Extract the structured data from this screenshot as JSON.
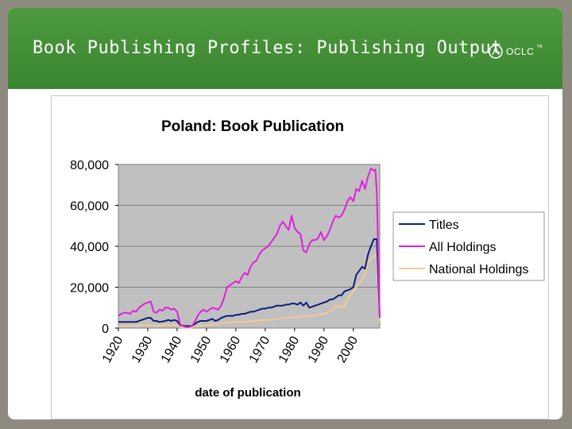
{
  "slide": {
    "title": "Book Publishing Profiles: Publishing Output",
    "logo_text": "OCLC",
    "logo_tm": "TM"
  },
  "colors": {
    "banner": "#3f8b34",
    "plot_bg": "#c0c0c0",
    "titles": "#0b1f7a",
    "all_holdings": "#e020e0",
    "national_holdings": "#f5c896"
  },
  "chart_data": {
    "type": "line",
    "title": "Poland: Book Publication",
    "xlabel": "date of publication",
    "ylabel": "",
    "xlim": [
      1920,
      2009
    ],
    "ylim": [
      0,
      80000
    ],
    "x_ticks": [
      "1920",
      "1930",
      "1940",
      "1950",
      "1960",
      "1970",
      "1980",
      "1990",
      "2000"
    ],
    "y_ticks": [
      "0",
      "20,000",
      "40,000",
      "60,000",
      "80,000"
    ],
    "grid": "horizontal",
    "legend_position": "right",
    "series": [
      {
        "name": "Titles",
        "color": "#0b1f7a",
        "x": [
          1920,
          1922,
          1924,
          1926,
          1928,
          1929,
          1930,
          1931,
          1932,
          1933,
          1934,
          1936,
          1937,
          1938,
          1939,
          1940,
          1941,
          1942,
          1943,
          1944,
          1945,
          1946,
          1947,
          1948,
          1949,
          1950,
          1951,
          1952,
          1953,
          1954,
          1955,
          1956,
          1957,
          1958,
          1959,
          1960,
          1961,
          1962,
          1963,
          1964,
          1965,
          1966,
          1967,
          1968,
          1969,
          1970,
          1971,
          1972,
          1973,
          1974,
          1975,
          1976,
          1977,
          1978,
          1979,
          1980,
          1981,
          1982,
          1983,
          1984,
          1985,
          1986,
          1987,
          1988,
          1989,
          1990,
          1991,
          1992,
          1993,
          1994,
          1995,
          1996,
          1997,
          1998,
          1999,
          2000,
          2001,
          2002,
          2003,
          2004,
          2005,
          2006,
          2007,
          2007.5,
          2008,
          2009
        ],
        "values": [
          3000,
          3000,
          3000,
          3000,
          4000,
          4500,
          5000,
          5000,
          3500,
          3500,
          3000,
          3500,
          4000,
          3500,
          4000,
          3500,
          1500,
          1200,
          1000,
          1000,
          1000,
          2000,
          3000,
          3500,
          3500,
          3500,
          4000,
          4500,
          3500,
          4000,
          5000,
          5500,
          6000,
          6000,
          6000,
          6500,
          6500,
          7000,
          7000,
          7500,
          8000,
          8000,
          8500,
          9000,
          9500,
          9500,
          10000,
          10000,
          10500,
          11000,
          11000,
          11000,
          11500,
          11500,
          12000,
          12000,
          11500,
          12500,
          11000,
          12500,
          10000,
          10500,
          11000,
          11500,
          12000,
          12500,
          13000,
          14000,
          14000,
          15000,
          16000,
          16000,
          18000,
          18500,
          19000,
          20000,
          26000,
          28000,
          30000,
          29000,
          36000,
          40000,
          43500,
          43500,
          43500,
          5000
        ]
      },
      {
        "name": "All Holdings",
        "color": "#e020e0",
        "x": [
          1920,
          1921,
          1922,
          1923,
          1924,
          1925,
          1926,
          1927,
          1928,
          1929,
          1930,
          1931,
          1932,
          1933,
          1934,
          1935,
          1936,
          1937,
          1938,
          1939,
          1940,
          1941,
          1942,
          1943,
          1944,
          1945,
          1946,
          1947,
          1948,
          1949,
          1950,
          1951,
          1952,
          1953,
          1954,
          1955,
          1956,
          1957,
          1958,
          1959,
          1960,
          1961,
          1962,
          1963,
          1964,
          1965,
          1966,
          1967,
          1968,
          1969,
          1970,
          1971,
          1972,
          1973,
          1974,
          1975,
          1976,
          1977,
          1978,
          1979,
          1980,
          1981,
          1982,
          1983,
          1984,
          1985,
          1986,
          1987,
          1988,
          1989,
          1990,
          1991,
          1992,
          1993,
          1994,
          1995,
          1996,
          1997,
          1998,
          1999,
          2000,
          2001,
          2002,
          2003,
          2004,
          2005,
          2006,
          2007,
          2007.5,
          2008,
          2009
        ],
        "values": [
          6000,
          7000,
          7500,
          7500,
          7000,
          8500,
          8000,
          10000,
          11000,
          12000,
          12500,
          13000,
          8000,
          7500,
          9000,
          8500,
          10000,
          10000,
          9000,
          9500,
          8000,
          2000,
          1000,
          500,
          500,
          1000,
          3000,
          6000,
          8000,
          9000,
          8000,
          9000,
          10000,
          9500,
          9000,
          11000,
          15000,
          20000,
          21000,
          22000,
          23000,
          22000,
          25000,
          27000,
          26000,
          30000,
          32000,
          33000,
          36000,
          38000,
          39000,
          40000,
          42000,
          44000,
          46000,
          50000,
          52000,
          50000,
          48000,
          55000,
          49000,
          47000,
          46000,
          38000,
          37000,
          41000,
          43000,
          43000,
          44000,
          47000,
          43000,
          45000,
          48000,
          52000,
          55000,
          54000,
          55000,
          58000,
          62000,
          64000,
          62000,
          68000,
          67000,
          72000,
          68000,
          74000,
          78000,
          77000,
          77500,
          66000,
          5000
        ]
      },
      {
        "name": "National Holdings",
        "color": "#f5c896",
        "x": [
          1920,
          1922,
          1924,
          1926,
          1928,
          1930,
          1932,
          1934,
          1936,
          1938,
          1940,
          1941,
          1942,
          1943,
          1944,
          1945,
          1946,
          1948,
          1950,
          1952,
          1954,
          1956,
          1958,
          1960,
          1962,
          1964,
          1966,
          1968,
          1970,
          1972,
          1974,
          1976,
          1978,
          1980,
          1982,
          1984,
          1986,
          1988,
          1990,
          1992,
          1993,
          1994,
          1995,
          1996,
          1997,
          1998,
          1999,
          2000,
          2001,
          2002,
          2003,
          2004,
          2005,
          2006,
          2007,
          2008,
          2009
        ],
        "values": [
          1000,
          1000,
          1200,
          1200,
          1500,
          1500,
          1000,
          1200,
          1500,
          1500,
          1500,
          500,
          300,
          200,
          200,
          300,
          800,
          1200,
          1500,
          1800,
          2000,
          2500,
          2800,
          3000,
          3000,
          3200,
          3500,
          3800,
          4000,
          4000,
          4500,
          4800,
          5000,
          5500,
          5500,
          6000,
          6000,
          6500,
          7000,
          8000,
          9000,
          11000,
          10000,
          11000,
          10000,
          14000,
          16000,
          18000,
          20000,
          22000,
          24000,
          26000,
          32000,
          34000,
          35000,
          36000,
          3000
        ]
      }
    ]
  }
}
